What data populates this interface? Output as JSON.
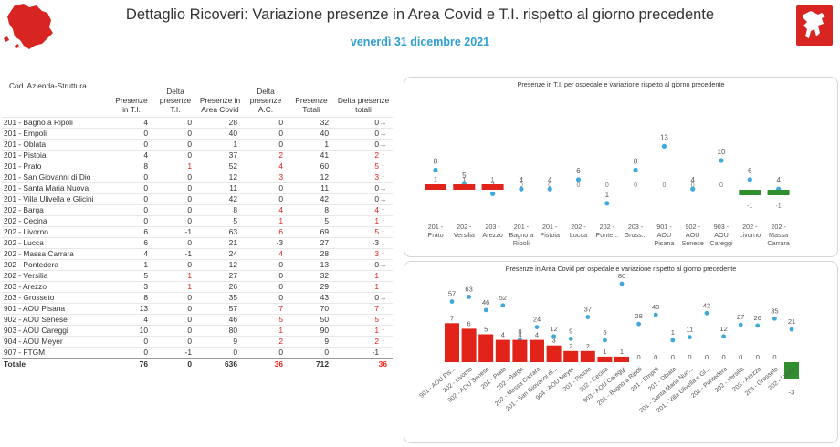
{
  "header": {
    "title": "Dettaglio Ricoveri: Variazione presenze in Area Covid e T.I. rispetto al giorno precedente",
    "date": "venerdì 31 dicembre 2021"
  },
  "colors": {
    "up": "#e2431a",
    "down": "#48a73a",
    "neutral": "#777777",
    "dot": "#3fa9dc",
    "bar_pos": "#e2231a",
    "bar_neg": "#2f8f2f",
    "date": "#2f9fd6"
  },
  "table": {
    "columns": [
      "Cod. Azienda-Struttura",
      "Presenze in T.I.",
      "Delta presenze T.I.",
      "Presenze in Area Covid",
      "Delta presenze A.C.",
      "Presenze Totali",
      "Delta presenze totali"
    ],
    "rows": [
      {
        "name": "201 - Bagno a Ripoli",
        "ti": "4",
        "dti": "0",
        "ac": "28",
        "dac": "0",
        "tot": "32",
        "dtot": "0",
        "arrow": "right"
      },
      {
        "name": "201 - Empoli",
        "ti": "0",
        "dti": "0",
        "ac": "40",
        "dac": "0",
        "tot": "40",
        "dtot": "0",
        "arrow": "right"
      },
      {
        "name": "201 - Oblata",
        "ti": "0",
        "dti": "0",
        "ac": "1",
        "dac": "0",
        "tot": "1",
        "dtot": "0",
        "arrow": "right"
      },
      {
        "name": "201 - Pistoia",
        "ti": "4",
        "dti": "0",
        "ac": "37",
        "dac": "2",
        "tot": "41",
        "dtot": "2",
        "arrow": "up"
      },
      {
        "name": "201 - Prato",
        "ti": "8",
        "dti": "1",
        "ac": "52",
        "dac": "4",
        "tot": "60",
        "dtot": "5",
        "arrow": "up"
      },
      {
        "name": "201 - San Giovanni di Dio",
        "ti": "0",
        "dti": "0",
        "ac": "12",
        "dac": "3",
        "tot": "12",
        "dtot": "3",
        "arrow": "up"
      },
      {
        "name": "201 - Santa Maria Nuova",
        "ti": "0",
        "dti": "0",
        "ac": "11",
        "dac": "0",
        "tot": "11",
        "dtot": "0",
        "arrow": "right"
      },
      {
        "name": "201 - Villa Ulivella e Glicini",
        "ti": "0",
        "dti": "0",
        "ac": "42",
        "dac": "0",
        "tot": "42",
        "dtot": "0",
        "arrow": "right"
      },
      {
        "name": "202 - Barga",
        "ti": "0",
        "dti": "0",
        "ac": "8",
        "dac": "4",
        "tot": "8",
        "dtot": "4",
        "arrow": "up"
      },
      {
        "name": "202 - Cecina",
        "ti": "0",
        "dti": "0",
        "ac": "5",
        "dac": "1",
        "tot": "5",
        "dtot": "1",
        "arrow": "up"
      },
      {
        "name": "202 - Livorno",
        "ti": "6",
        "dti": "-1",
        "ac": "63",
        "dac": "6",
        "tot": "69",
        "dtot": "5",
        "arrow": "up"
      },
      {
        "name": "202 - Lucca",
        "ti": "6",
        "dti": "0",
        "ac": "21",
        "dac": "-3",
        "tot": "27",
        "dtot": "-3",
        "arrow": "down"
      },
      {
        "name": "202 - Massa Carrara",
        "ti": "4",
        "dti": "-1",
        "ac": "24",
        "dac": "4",
        "tot": "28",
        "dtot": "3",
        "arrow": "up"
      },
      {
        "name": "202 - Pontedera",
        "ti": "1",
        "dti": "0",
        "ac": "12",
        "dac": "0",
        "tot": "13",
        "dtot": "0",
        "arrow": "right"
      },
      {
        "name": "202 - Versilia",
        "ti": "5",
        "dti": "1",
        "ac": "27",
        "dac": "0",
        "tot": "32",
        "dtot": "1",
        "arrow": "up"
      },
      {
        "name": "203 - Arezzo",
        "ti": "3",
        "dti": "1",
        "ac": "26",
        "dac": "0",
        "tot": "29",
        "dtot": "1",
        "arrow": "up"
      },
      {
        "name": "203 - Grosseto",
        "ti": "8",
        "dti": "0",
        "ac": "35",
        "dac": "0",
        "tot": "43",
        "dtot": "0",
        "arrow": "right"
      },
      {
        "name": "901 - AOU Pisana",
        "ti": "13",
        "dti": "0",
        "ac": "57",
        "dac": "7",
        "tot": "70",
        "dtot": "7",
        "arrow": "up"
      },
      {
        "name": "902 - AOU Senese",
        "ti": "4",
        "dti": "0",
        "ac": "46",
        "dac": "5",
        "tot": "50",
        "dtot": "5",
        "arrow": "up"
      },
      {
        "name": "903 - AOU Careggi",
        "ti": "10",
        "dti": "0",
        "ac": "80",
        "dac": "1",
        "tot": "90",
        "dtot": "1",
        "arrow": "up"
      },
      {
        "name": "904 - AOU Meyer",
        "ti": "0",
        "dti": "0",
        "ac": "9",
        "dac": "2",
        "tot": "9",
        "dtot": "2",
        "arrow": "up"
      },
      {
        "name": "907 - FTGM",
        "ti": "0",
        "dti": "-1",
        "ac": "0",
        "dac": "0",
        "tot": "0",
        "dtot": "-1",
        "arrow": "down"
      }
    ],
    "total": {
      "name": "Totale",
      "ti": "76",
      "dti": "0",
      "ac": "636",
      "dac": "36",
      "tot": "712",
      "dtot": "36"
    }
  },
  "chart_data": [
    {
      "type": "bar",
      "title": "Presenze in T.I. per ospedale e variazione rispetto al giorno precedente",
      "categories": [
        "201 - Prato",
        "202 - Versilia",
        "203 - Arezzo",
        "201 - Bagno a Ripoli",
        "201 - Pistoia",
        "202 - Lucca",
        "202 - Ponte...",
        "203 - Gross...",
        "901 - AOU Pisana",
        "902 - AOU Senese",
        "903 - AOU Careggi",
        "202 - Livorno",
        "202 - Massa Carrara"
      ],
      "series": [
        {
          "name": "",
          "values": [
            8,
            5,
            3,
            4,
            4,
            6,
            1,
            8,
            13,
            4,
            10,
            6,
            4
          ]
        },
        {
          "name": "",
          "values": [
            1,
            1,
            1,
            0,
            0,
            0,
            0,
            0,
            0,
            0,
            0,
            -1,
            -1
          ]
        }
      ]
    },
    {
      "type": "bar",
      "title": "Presenze in Area Covid per ospedale e variazione rispetto al giorno precedente",
      "categories": [
        "901 - AOU Pis...",
        "202 - Livorno",
        "902 - AOU Senese",
        "201 - Prato",
        "202 - Barga",
        "202 - Massa Carrara",
        "201 - San Giovanni di...",
        "904 - AOU Meyer",
        "201 - Pistoia",
        "202 - Cecina",
        "903 - AOU Careggi",
        "201 - Bagno a Ripoli",
        "201 - Empoli",
        "201 - Oblata",
        "201 - Santa Maria Nuo...",
        "201 - Villa Ulivella e Gl...",
        "202 - Pontedera",
        "202 - Versilia",
        "203 - Arezzo",
        "203 - Grosseto",
        "202 - Lucca"
      ],
      "series": [
        {
          "name": "",
          "values": [
            57,
            63,
            46,
            52,
            8,
            24,
            12,
            9,
            37,
            5,
            80,
            28,
            40,
            1,
            11,
            42,
            12,
            27,
            26,
            35,
            21
          ]
        },
        {
          "name": "",
          "values": [
            7,
            6,
            5,
            4,
            4,
            4,
            3,
            2,
            2,
            1,
            1,
            0,
            0,
            0,
            0,
            0,
            0,
            0,
            0,
            0,
            -3
          ]
        }
      ]
    }
  ]
}
